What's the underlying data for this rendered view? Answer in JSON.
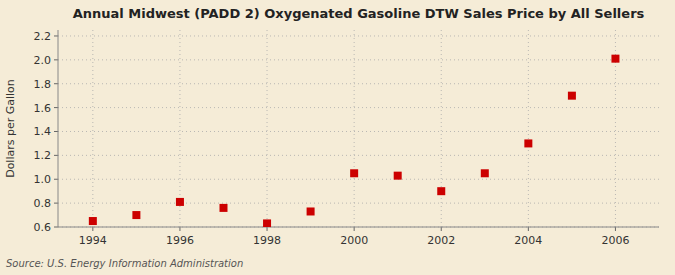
{
  "chart_data": {
    "type": "scatter",
    "title": "Annual Midwest (PADD 2) Oxygenated Gasoline DTW Sales Price by All Sellers",
    "ylabel": "Dollars per Gallon",
    "source": "Source: U.S. Energy Information Administration",
    "x": [
      1994,
      1995,
      1996,
      1997,
      1998,
      1999,
      2000,
      2001,
      2002,
      2003,
      2004,
      2005,
      2006
    ],
    "values": [
      0.65,
      0.7,
      0.81,
      0.76,
      0.63,
      0.73,
      1.05,
      1.03,
      0.9,
      1.05,
      1.3,
      1.7,
      2.01
    ],
    "xlim": [
      1993.2,
      2007.0
    ],
    "ylim": [
      0.6,
      2.25
    ],
    "xticks": [
      1994,
      1996,
      1998,
      2000,
      2002,
      2004,
      2006
    ],
    "yticks": [
      0.6,
      0.8,
      {
        "value": 1.0,
        "label": "1.0"
      },
      1.2,
      1.4,
      1.6,
      1.8,
      {
        "value": 2.0,
        "label": "2.0"
      },
      2.2
    ],
    "color": "#cc0000",
    "marker": "square",
    "grid": true
  }
}
